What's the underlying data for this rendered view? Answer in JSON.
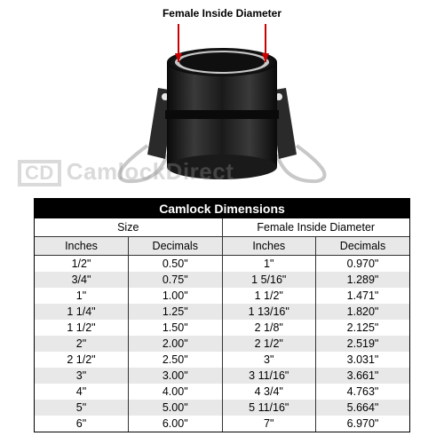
{
  "diagram": {
    "label": "Female Inside Diameter",
    "arrow_color": "#cc0000",
    "fitting_color": "#1a1a1a",
    "fitting_highlight": "#3a3a3a",
    "handle_color": "#d0d0d0",
    "inner_ring_color": "#c8c8c8"
  },
  "watermark": {
    "badge": "CD",
    "text": "CamlockDirect"
  },
  "table": {
    "title": "Camlock Dimensions",
    "title_bg": "#000000",
    "title_color": "#ffffff",
    "border_color": "#000000",
    "row_alt_bg": "#e8e8e8",
    "row_bg": "#ffffff",
    "font_size_pt": 9,
    "superheaders": [
      "Size",
      "Female Inside Diameter"
    ],
    "columns": [
      "Inches",
      "Decimals",
      "Inches",
      "Decimals"
    ],
    "rows": [
      [
        "1/2\"",
        "0.50\"",
        "1\"",
        "0.970\""
      ],
      [
        "3/4\"",
        "0.75\"",
        "1 5/16\"",
        "1.289\""
      ],
      [
        "1\"",
        "1.00\"",
        "1 1/2\"",
        "1.471\""
      ],
      [
        "1 1/4\"",
        "1.25\"",
        "1 13/16\"",
        "1.820\""
      ],
      [
        "1 1/2\"",
        "1.50\"",
        "2 1/8\"",
        "2.125\""
      ],
      [
        "2\"",
        "2.00\"",
        "2 1/2\"",
        "2.519\""
      ],
      [
        "2 1/2\"",
        "2.50\"",
        "3\"",
        "3.031\""
      ],
      [
        "3\"",
        "3.00\"",
        "3 11/16\"",
        "3.661\""
      ],
      [
        "4\"",
        "4.00\"",
        "4 3/4\"",
        "4.763\""
      ],
      [
        "5\"",
        "5.00\"",
        "5 11/16\"",
        "5.664\""
      ],
      [
        "6\"",
        "6.00\"",
        "7\"",
        "6.970\""
      ]
    ]
  }
}
